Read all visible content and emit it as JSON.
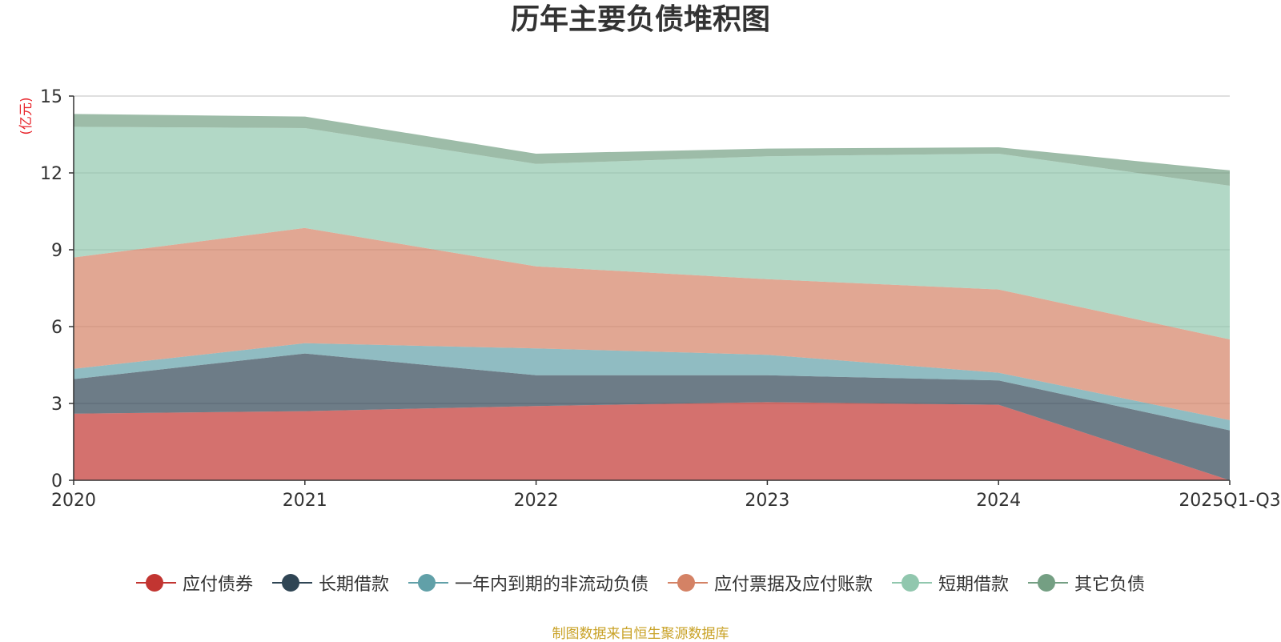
{
  "chart_data": {
    "type": "area",
    "stacked": true,
    "title": "历年主要负债堆积图",
    "ylabel": "(亿元)",
    "xlabel": "",
    "categories": [
      "2020",
      "2021",
      "2022",
      "2023",
      "2024",
      "2025Q1-Q3"
    ],
    "ylim": [
      0,
      15
    ],
    "yticks": [
      0,
      3,
      6,
      9,
      12,
      15
    ],
    "series": [
      {
        "name": "应付债券",
        "color": "#c23531",
        "values": [
          2.6,
          2.7,
          2.9,
          3.05,
          2.95,
          0.0
        ]
      },
      {
        "name": "长期借款",
        "color": "#2f4554",
        "values": [
          1.35,
          2.25,
          1.2,
          1.05,
          0.95,
          1.95
        ]
      },
      {
        "name": "一年内到期的非流动负债",
        "color": "#61a0a8",
        "values": [
          0.4,
          0.4,
          1.05,
          0.8,
          0.3,
          0.4
        ]
      },
      {
        "name": "应付票据及应付账款",
        "color": "#d48265",
        "values": [
          4.35,
          4.5,
          3.2,
          2.95,
          3.25,
          3.15
        ]
      },
      {
        "name": "短期借款",
        "color": "#91c7ae",
        "values": [
          5.1,
          3.9,
          4.0,
          4.8,
          5.3,
          6.0
        ]
      },
      {
        "name": "其它负债",
        "color": "#749f83",
        "values": [
          0.5,
          0.45,
          0.4,
          0.3,
          0.25,
          0.6
        ]
      }
    ],
    "legend_position": "bottom"
  },
  "source_text": "制图数据来自恒生聚源数据库"
}
